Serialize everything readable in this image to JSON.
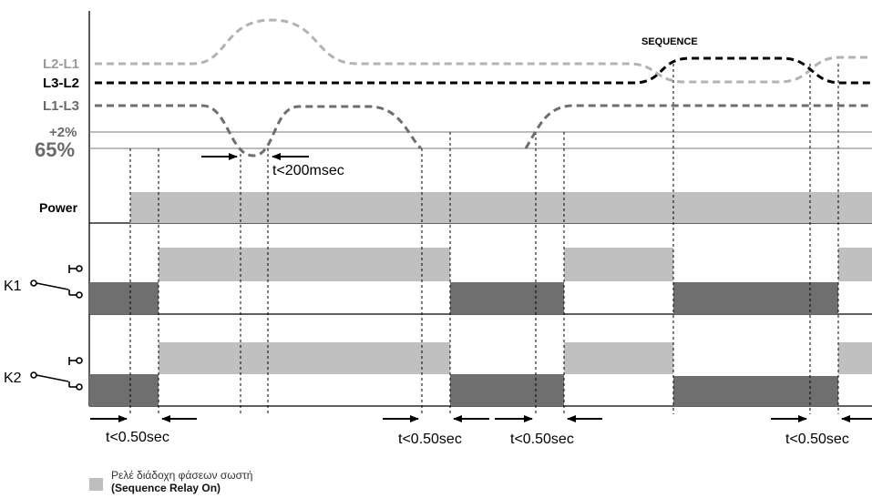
{
  "signals": {
    "l2_l1": "L2-L1",
    "l3_l2": "L3-L2",
    "l1_l3": "L1-L3",
    "plus2": "+2%",
    "pct65": "65%",
    "power": "Power",
    "k1": "K1",
    "k2": "K2"
  },
  "annotations": {
    "sequence": "SEQUENCE",
    "t200": "t<200msec",
    "t050": "t<0.50sec"
  },
  "legend": {
    "line1": "Ρελέ διάδοχη φάσεων σωστή",
    "line2": "(Sequence Relay On)"
  },
  "colors": {
    "light_bar": "#c0c0c0",
    "dark_bar": "#6f6f6f",
    "curve_light": "#b3b3b3",
    "curve_dark": "#000000",
    "curve_mid": "#6e6e6e"
  }
}
